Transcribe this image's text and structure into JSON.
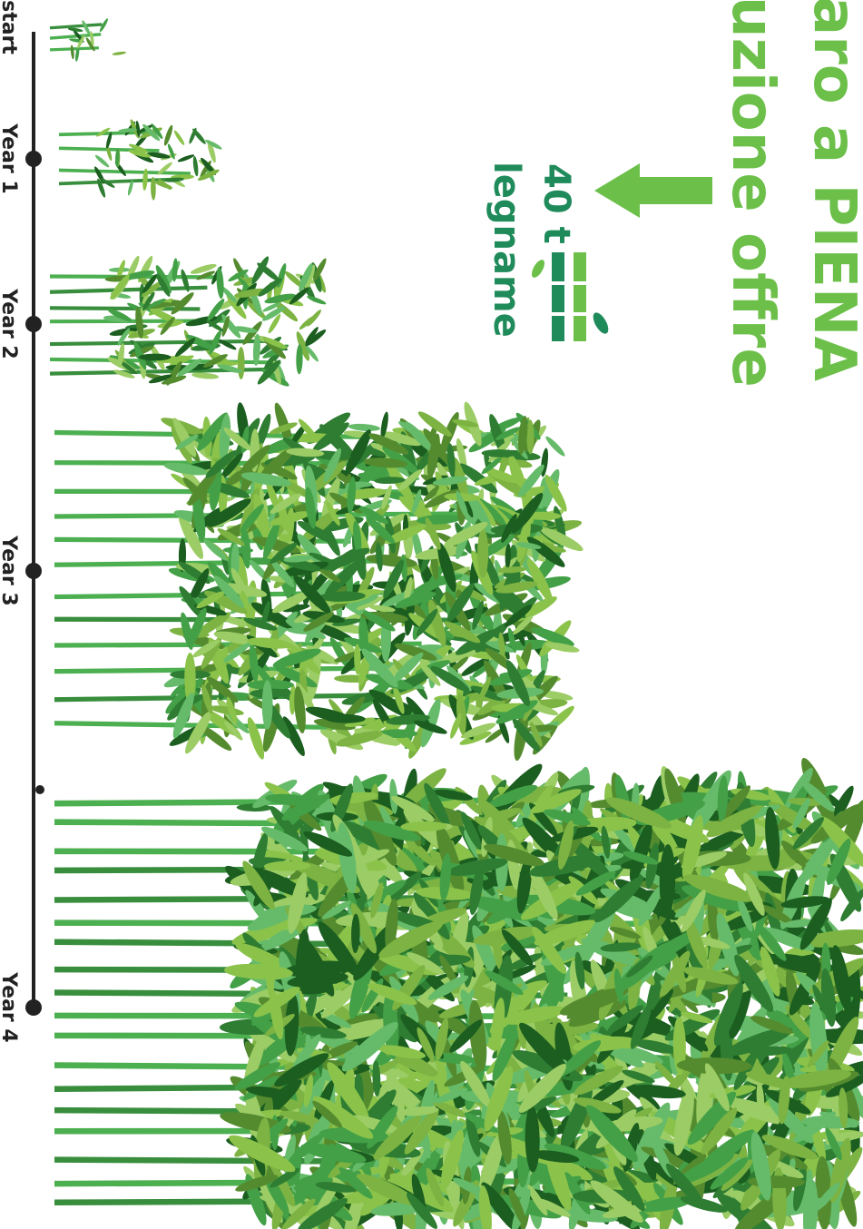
{
  "header": {
    "line1": "aro a PIENA",
    "line2": "uzione offre"
  },
  "callout": {
    "amount": "40 t",
    "label": "legname"
  },
  "timeline": {
    "labels": [
      "start",
      "Year 1",
      "Year 2",
      "Year 3",
      "Year 4"
    ]
  }
}
